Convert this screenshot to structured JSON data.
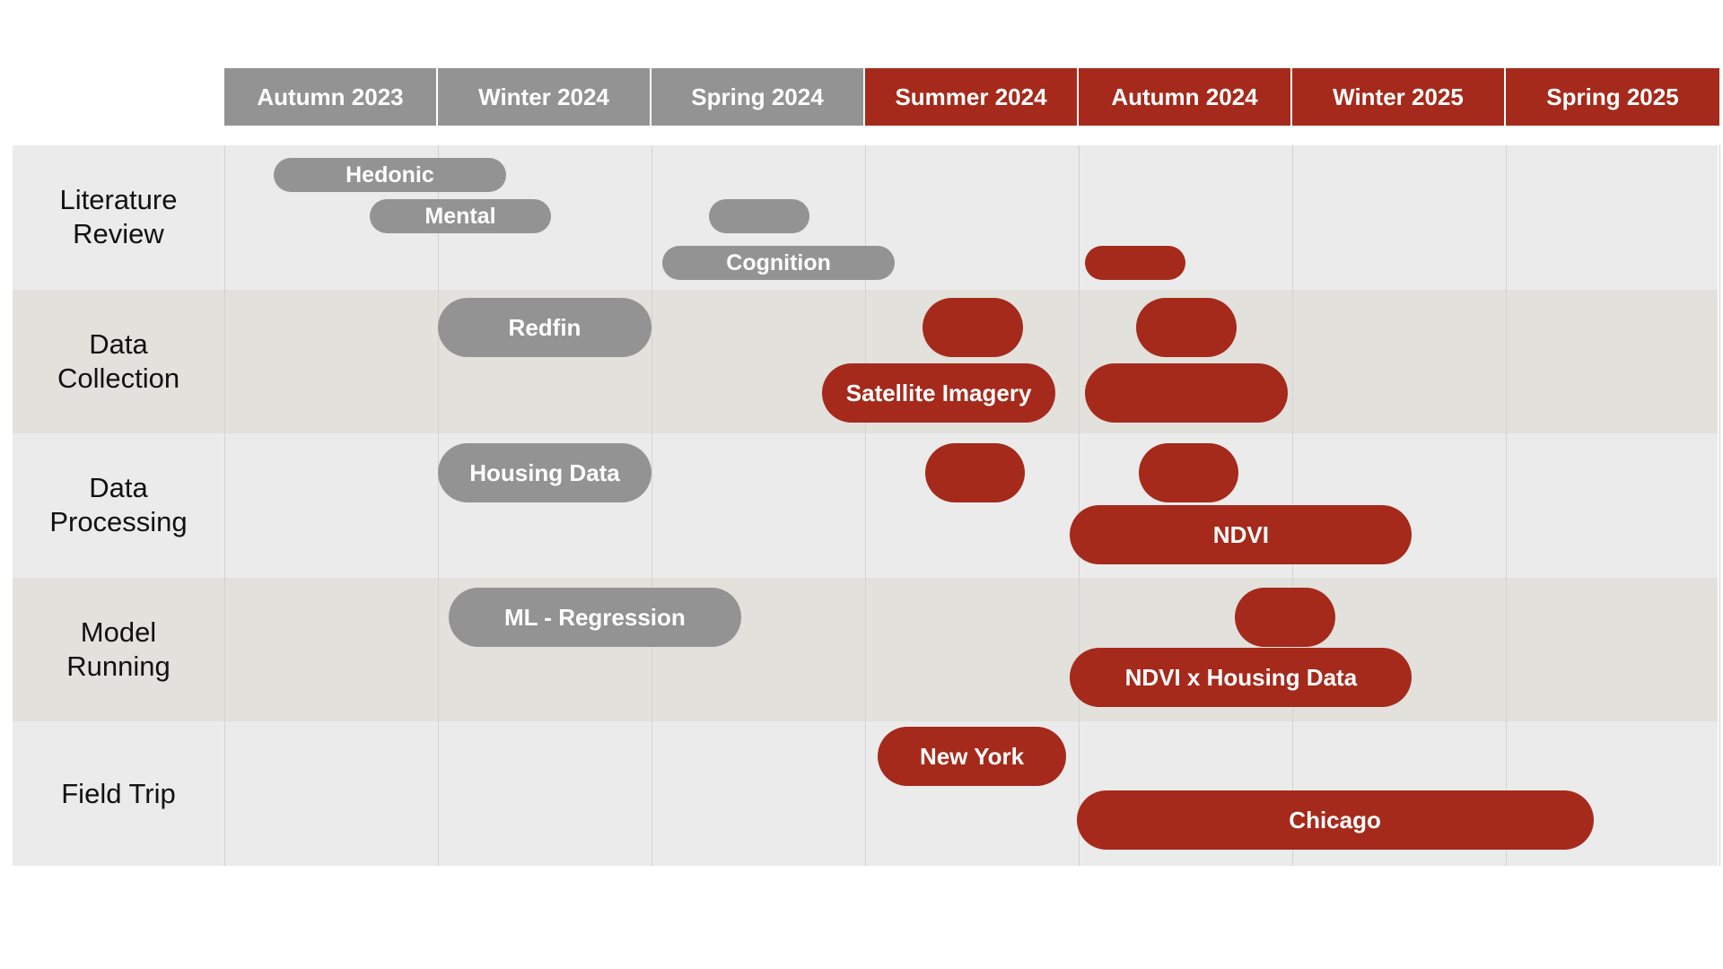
{
  "colors": {
    "gray": "#939393",
    "red": "#a52a1b",
    "band_light": "#ebebeb",
    "band_dark": "#e2e1dc"
  },
  "columns": [
    {
      "label": "Autumn 2023",
      "color": "gray"
    },
    {
      "label": "Winter 2024",
      "color": "gray"
    },
    {
      "label": "Spring 2024",
      "color": "gray"
    },
    {
      "label": "Summer 2024",
      "color": "red"
    },
    {
      "label": "Autumn 2024",
      "color": "red"
    },
    {
      "label": "Winter 2025",
      "color": "red"
    },
    {
      "label": "Spring 2025",
      "color": "red"
    }
  ],
  "rows": [
    {
      "label": "Literature\nReview",
      "band": "band_light"
    },
    {
      "label": "Data\nCollection",
      "band": "band_dark"
    },
    {
      "label": "Data\nProcessing",
      "band": "band_light"
    },
    {
      "label": "Model\nRunning",
      "band": "band_dark"
    },
    {
      "label": "Field Trip",
      "band": "band_light"
    }
  ],
  "tasks": [
    {
      "label": "Hedonic",
      "row": 0,
      "lane": 0,
      "start": 0.23,
      "end": 1.32,
      "color": "gray"
    },
    {
      "label": "Mental",
      "row": 0,
      "lane": 1,
      "start": 0.68,
      "end": 1.53,
      "color": "gray"
    },
    {
      "label": "",
      "row": 0,
      "lane": 1,
      "start": 2.27,
      "end": 2.74,
      "color": "gray"
    },
    {
      "label": "Cognition",
      "row": 0,
      "lane": 2,
      "start": 2.05,
      "end": 3.14,
      "color": "gray"
    },
    {
      "label": "",
      "row": 0,
      "lane": 2,
      "start": 4.03,
      "end": 4.5,
      "color": "red"
    },
    {
      "label": "Redfin",
      "row": 1,
      "lane": 0,
      "start": 1.0,
      "end": 2.0,
      "color": "gray"
    },
    {
      "label": "",
      "row": 1,
      "lane": 0,
      "start": 3.27,
      "end": 3.74,
      "color": "red"
    },
    {
      "label": "",
      "row": 1,
      "lane": 0,
      "start": 4.27,
      "end": 4.74,
      "color": "red"
    },
    {
      "label": "Satellite Imagery",
      "row": 1,
      "lane": 1,
      "start": 2.8,
      "end": 3.89,
      "color": "red"
    },
    {
      "label": "",
      "row": 1,
      "lane": 1,
      "start": 4.03,
      "end": 4.98,
      "color": "red"
    },
    {
      "label": "Housing Data",
      "row": 2,
      "lane": 0,
      "start": 1.0,
      "end": 2.0,
      "color": "gray"
    },
    {
      "label": "",
      "row": 2,
      "lane": 0,
      "start": 3.28,
      "end": 3.75,
      "color": "red"
    },
    {
      "label": "",
      "row": 2,
      "lane": 0,
      "start": 4.28,
      "end": 4.75,
      "color": "red"
    },
    {
      "label": "NDVI",
      "row": 2,
      "lane": 1,
      "start": 3.96,
      "end": 5.56,
      "color": "red"
    },
    {
      "label": "ML - Regression",
      "row": 3,
      "lane": 0,
      "start": 1.05,
      "end": 2.42,
      "color": "gray"
    },
    {
      "label": "",
      "row": 3,
      "lane": 0,
      "start": 4.73,
      "end": 5.2,
      "color": "red"
    },
    {
      "label": "NDVI x Housing Data",
      "row": 3,
      "lane": 1,
      "start": 3.96,
      "end": 5.56,
      "color": "red"
    },
    {
      "label": "New York",
      "row": 4,
      "lane": 0,
      "start": 3.06,
      "end": 3.94,
      "color": "red"
    },
    {
      "label": "Chicago",
      "row": 4,
      "lane": 1,
      "start": 3.99,
      "end": 6.41,
      "color": "red"
    }
  ]
}
